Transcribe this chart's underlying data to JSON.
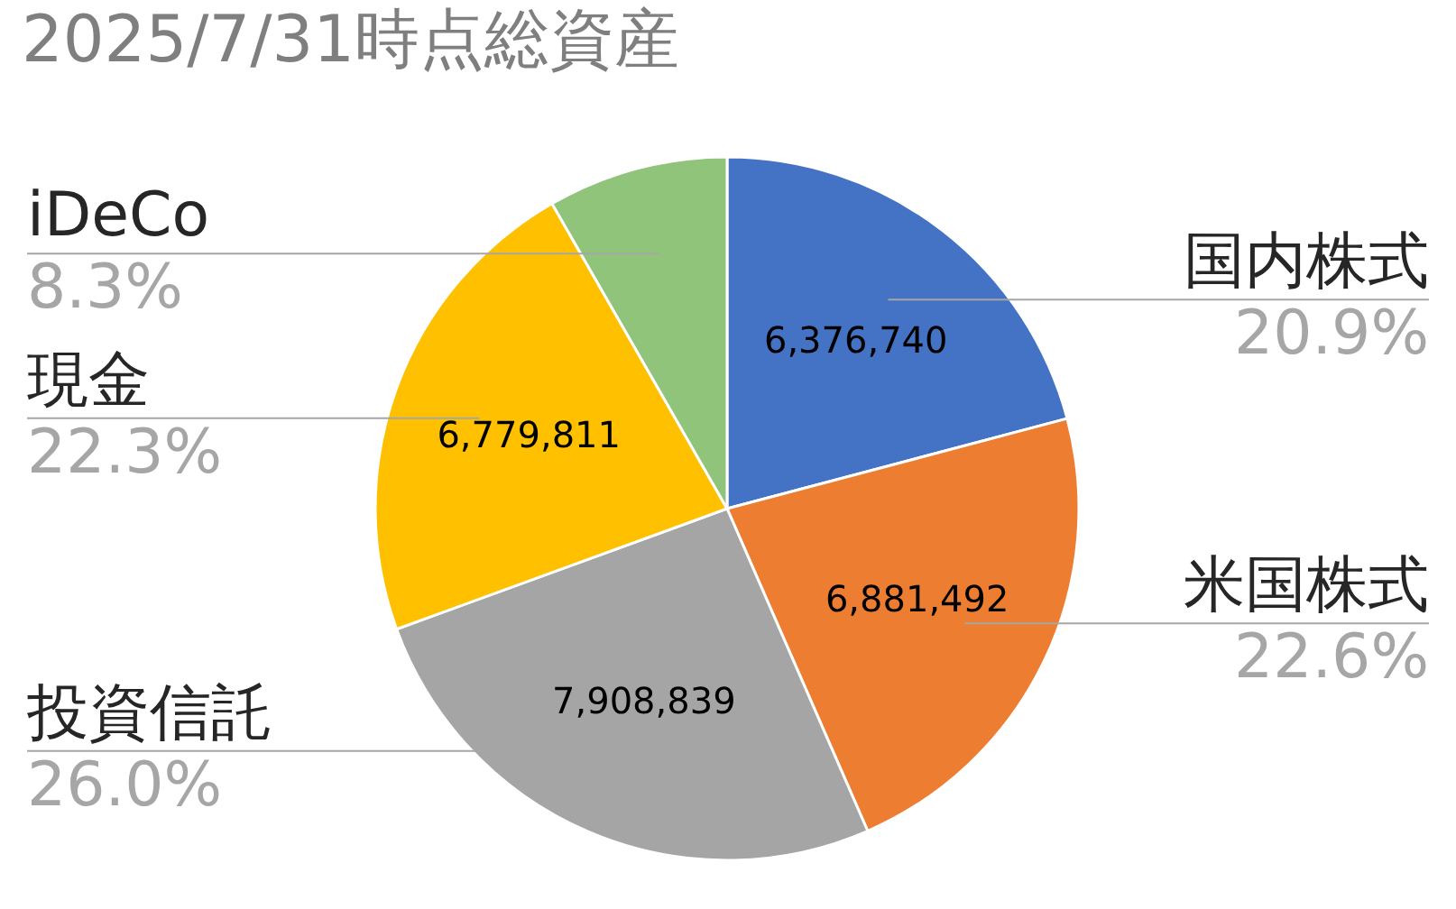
{
  "chart_data": {
    "type": "pie",
    "title": "2025/7/31時点総資産",
    "categories": [
      "国内株式",
      "米国株式",
      "投資信託",
      "現金",
      "iDeCo"
    ],
    "values": [
      20.9,
      22.6,
      26.0,
      22.3,
      8.3
    ],
    "colors": [
      "#4472c4",
      "#ed7d31",
      "#a5a5a5",
      "#ffc000",
      "#8fc47a"
    ],
    "value_labels": [
      "20.9%",
      "22.6%",
      "26.0%",
      "22.3%",
      "8.3%"
    ],
    "annotations": [
      {
        "text": "6,376,740",
        "x": "国内株式"
      },
      {
        "text": "6,881,492",
        "x": "米国株式"
      },
      {
        "text": "7,908,839",
        "x": "投資信託"
      },
      {
        "text": "6,779,811",
        "x": "現金"
      }
    ]
  }
}
